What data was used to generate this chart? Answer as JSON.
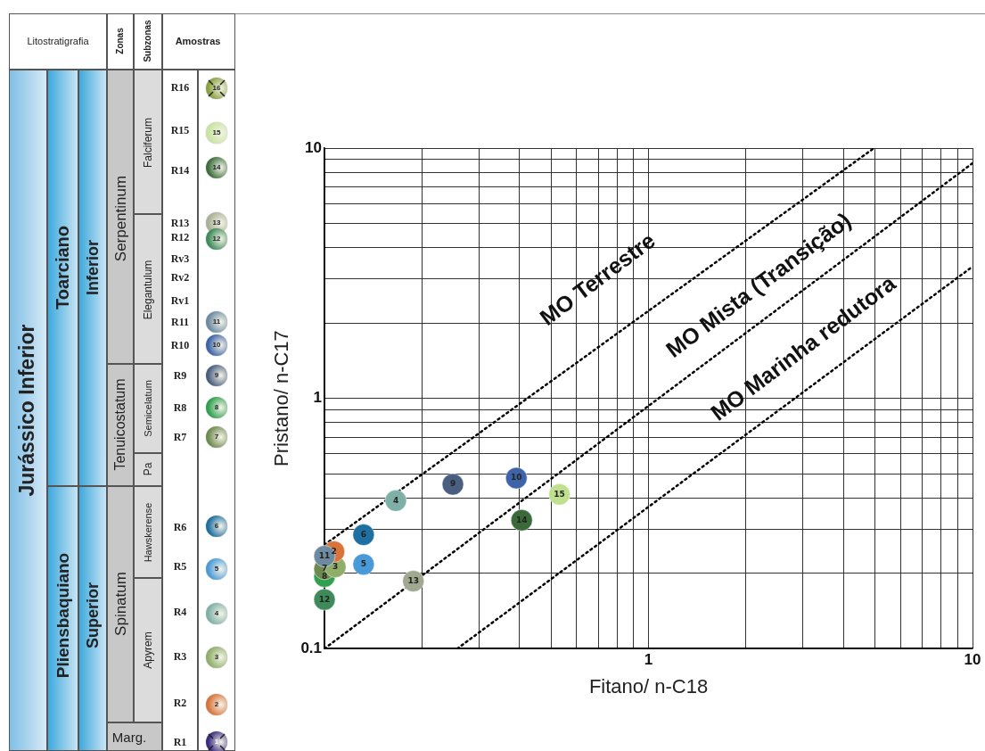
{
  "chart_data": [
    {
      "type": "other",
      "annotations": [
        "Litostratigrafia",
        "Zonas",
        "Subzonas",
        "Amostras",
        "Jurássico Inferior",
        "Toarciano",
        "Inferior",
        "Pliensbaquiano",
        "Superior",
        "Serpentinum",
        "Tenuicostatum",
        "Spinatum",
        "Marg.",
        "Falciferum",
        "Elegantulum",
        "Semicelatum",
        "Pa",
        "Hawskerense",
        "Apyrem",
        "R16",
        "R15",
        "R14",
        "R13",
        "R12",
        "Rv3",
        "Rv2",
        "Rv1",
        "R11",
        "R10",
        "R9",
        "R8",
        "R7",
        "R6",
        "R5",
        "R4",
        "R3",
        "R2",
        "R1",
        "16",
        "15",
        "14",
        "13",
        "12",
        "11",
        "10",
        "9",
        "8",
        "7",
        "6",
        "5",
        "4",
        "3",
        "2",
        "1"
      ]
    },
    {
      "type": "scatter",
      "xlabel": "Fitano/ n-C18",
      "ylabel": "Pristano/ n-C17",
      "log": "xy",
      "grid": true,
      "marker": "circle",
      "xlim": [
        0.1,
        10
      ],
      "ylim": [
        0.1,
        10
      ],
      "xticks": [
        {
          "value": 0.1,
          "label": null
        },
        {
          "value": 0.2,
          "label": null
        },
        {
          "value": 0.3,
          "label": null
        },
        {
          "value": 0.4,
          "label": null
        },
        {
          "value": 0.5,
          "label": null
        },
        {
          "value": 0.6,
          "label": null
        },
        {
          "value": 0.7,
          "label": null
        },
        {
          "value": 0.8,
          "label": null
        },
        {
          "value": 0.9,
          "label": null
        },
        1,
        {
          "value": 2,
          "label": null
        },
        {
          "value": 3,
          "label": null
        },
        {
          "value": 4,
          "label": null
        },
        {
          "value": 5,
          "label": null
        },
        {
          "value": 6,
          "label": null
        },
        {
          "value": 7,
          "label": null
        },
        {
          "value": 8,
          "label": null
        },
        {
          "value": 9,
          "label": null
        },
        10
      ],
      "yticks": [
        0.1,
        {
          "value": 0.2,
          "label": null
        },
        {
          "value": 0.3,
          "label": null
        },
        {
          "value": 0.4,
          "label": null
        },
        {
          "value": 0.5,
          "label": null
        },
        {
          "value": 0.6,
          "label": null
        },
        {
          "value": 0.7,
          "label": null
        },
        {
          "value": 0.8,
          "label": null
        },
        {
          "value": 0.9,
          "label": null
        },
        1,
        {
          "value": 2,
          "label": null
        },
        {
          "value": 3,
          "label": null
        },
        {
          "value": 4,
          "label": null
        },
        {
          "value": 5,
          "label": null
        },
        {
          "value": 6,
          "label": null
        },
        {
          "value": 7,
          "label": null
        },
        {
          "value": 8,
          "label": null
        },
        {
          "value": 9,
          "label": null
        },
        10
      ],
      "annotations": [
        "MO Terrestre",
        "MO Mista (Transição)",
        "MO Marinha redutora"
      ],
      "series": [
        {
          "name": "11",
          "color": "#6d8aa0",
          "x": [
            0.1
          ],
          "values": [
            0.234
          ]
        },
        {
          "name": "2",
          "color": "#d9733a",
          "x": [
            0.107
          ],
          "values": [
            0.244
          ]
        },
        {
          "name": "3",
          "color": "#8fae6a",
          "x": [
            0.108
          ],
          "values": [
            0.212
          ]
        },
        {
          "name": "7",
          "color": "#6f8a50",
          "x": [
            0.1
          ],
          "values": [
            0.208
          ]
        },
        {
          "name": "8",
          "color": "#30a050",
          "x": [
            0.1
          ],
          "values": [
            0.194
          ]
        },
        {
          "name": "12",
          "color": "#3f8a5a",
          "x": [
            0.1
          ],
          "values": [
            0.157
          ]
        },
        {
          "name": "4",
          "color": "#7fb0a8",
          "x": [
            0.166
          ],
          "values": [
            0.39
          ]
        },
        {
          "name": "5",
          "color": "#4a9ad8",
          "x": [
            0.132
          ],
          "values": [
            0.217
          ]
        },
        {
          "name": "6",
          "color": "#1f6fa0",
          "x": [
            0.132
          ],
          "values": [
            0.285
          ]
        },
        {
          "name": "9",
          "color": "#4a5f80",
          "x": [
            0.249
          ],
          "values": [
            0.453
          ]
        },
        {
          "name": "10",
          "color": "#3f63a8",
          "x": [
            0.391
          ],
          "values": [
            0.48
          ]
        },
        {
          "name": "13",
          "color": "#a0a890",
          "x": [
            0.188
          ],
          "values": [
            0.186
          ]
        },
        {
          "name": "14",
          "color": "#3a6a3a",
          "x": [
            0.406
          ],
          "values": [
            0.326
          ]
        },
        {
          "name": "15",
          "color": "#c0e090",
          "x": [
            0.531
          ],
          "values": [
            0.413
          ]
        },
        {
          "type": "line",
          "color": "#000000",
          "line_style": "dotted",
          "marker": "none",
          "x": [
            0.1,
            4.97
          ],
          "values": [
            0.26,
            10
          ]
        },
        {
          "type": "line",
          "color": "#000000",
          "line_style": "dotted",
          "marker": "none",
          "x": [
            0.1,
            10
          ],
          "values": [
            0.1,
            8.7
          ]
        },
        {
          "type": "line",
          "color": "#000000",
          "line_style": "dotted",
          "marker": "none",
          "x": [
            0.257,
            10
          ],
          "values": [
            0.1,
            3.36
          ]
        }
      ]
    }
  ]
}
